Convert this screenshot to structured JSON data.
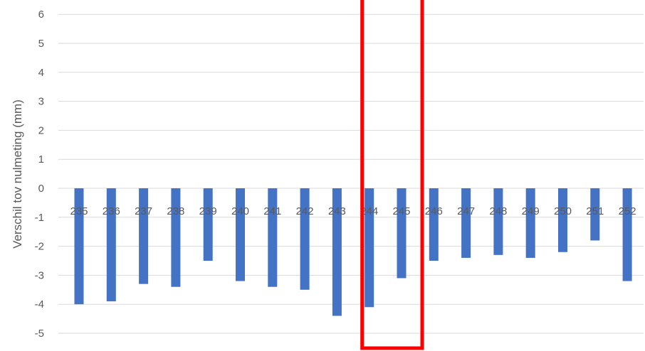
{
  "chart_data": {
    "type": "bar",
    "title": "",
    "xlabel": "",
    "ylabel": "Verschil tov nulmeting (mm)",
    "categories": [
      "235",
      "236",
      "237",
      "238",
      "239",
      "240",
      "241",
      "242",
      "243",
      "244",
      "245",
      "246",
      "247",
      "248",
      "249",
      "250",
      "251",
      "252"
    ],
    "series": [
      {
        "values": [
          -4.0,
          -3.9,
          -3.3,
          -3.4,
          -2.5,
          -3.2,
          -3.4,
          -3.5,
          -4.4,
          -4.1,
          -3.1,
          -2.5,
          -2.4,
          -2.3,
          -2.4,
          -2.2,
          -1.8,
          -3.2
        ]
      }
    ],
    "ylim": [
      -5.5,
      6.4
    ],
    "yticks": [
      6,
      5,
      4,
      3,
      2,
      1,
      0,
      -1,
      -2,
      -3,
      -4,
      -5
    ],
    "grid": true,
    "bar_color": "#4472c4",
    "grid_color": "#d9d9d9",
    "highlight": {
      "categories": [
        "244",
        "245"
      ],
      "color": "#ff0000"
    }
  }
}
